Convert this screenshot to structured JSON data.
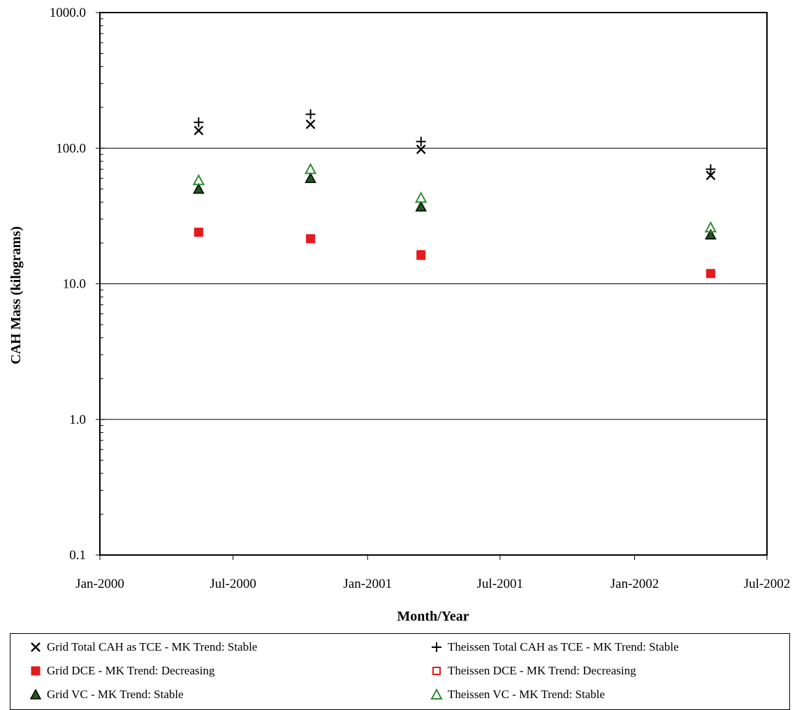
{
  "chart_data": {
    "type": "scatter",
    "title": "",
    "xlabel": "Month/Year",
    "ylabel": "CAH Mass (kilograms)",
    "y_scale": "log",
    "ylim": [
      0.1,
      1000
    ],
    "y_ticks": [
      0.1,
      1,
      10,
      100,
      1000
    ],
    "y_tick_labels": [
      "0.1",
      "1.0",
      "10.0",
      "100.0",
      "1000.0"
    ],
    "xlim": [
      "2000-01-01",
      "2002-07-01"
    ],
    "x_ticks": [
      "2000-01-01",
      "2000-07-01",
      "2001-01-01",
      "2001-07-01",
      "2002-01-01",
      "2002-07-01"
    ],
    "x_tick_labels": [
      "Jan-2000",
      "Jul-2000",
      "Jan-2001",
      "Jul-2001",
      "Jan-2002",
      "Jul-2002"
    ],
    "grid": "horizontal major only",
    "legend_position": "bottom",
    "series": [
      {
        "name": "Grid Total CAH as TCE - MK Trend: Stable",
        "marker": "x",
        "color": "#000000",
        "x": [
          "2000-05-15",
          "2000-10-15",
          "2001-03-15",
          "2002-04-15"
        ],
        "y": [
          135,
          150,
          98,
          63
        ]
      },
      {
        "name": "Theissen Total CAH as TCE - MK Trend: Stable",
        "marker": "plus",
        "color": "#000000",
        "x": [
          "2000-05-15",
          "2000-10-15",
          "2001-03-15",
          "2002-04-15"
        ],
        "y": [
          155,
          178,
          112,
          70
        ]
      },
      {
        "name": "Grid DCE - MK Trend: Decreasing",
        "marker": "square-filled",
        "color": "#e41a1c",
        "x": [
          "2000-05-15",
          "2000-10-15",
          "2001-03-15",
          "2002-04-15"
        ],
        "y": [
          24,
          21.5,
          16.2,
          11.9
        ]
      },
      {
        "name": "Theissen DCE - MK Trend: Decreasing",
        "marker": "square-open",
        "color": "#e41a1c",
        "x": [
          "2000-05-15",
          "2000-10-15",
          "2001-03-15",
          "2002-04-15"
        ],
        "y": [
          24,
          21.5,
          16.5,
          11.9
        ]
      },
      {
        "name": "Grid VC - MK Trend: Stable",
        "marker": "triangle-filled",
        "color": "#1e5a1e",
        "x": [
          "2000-05-15",
          "2000-10-15",
          "2001-03-15",
          "2002-04-15"
        ],
        "y": [
          50,
          60,
          37,
          23
        ]
      },
      {
        "name": "Theissen VC - MK Trend: Stable",
        "marker": "triangle-open",
        "color": "#2e8b2e",
        "x": [
          "2000-05-15",
          "2000-10-15",
          "2001-03-15",
          "2002-04-15"
        ],
        "y": [
          58,
          70,
          43,
          26
        ]
      }
    ]
  }
}
